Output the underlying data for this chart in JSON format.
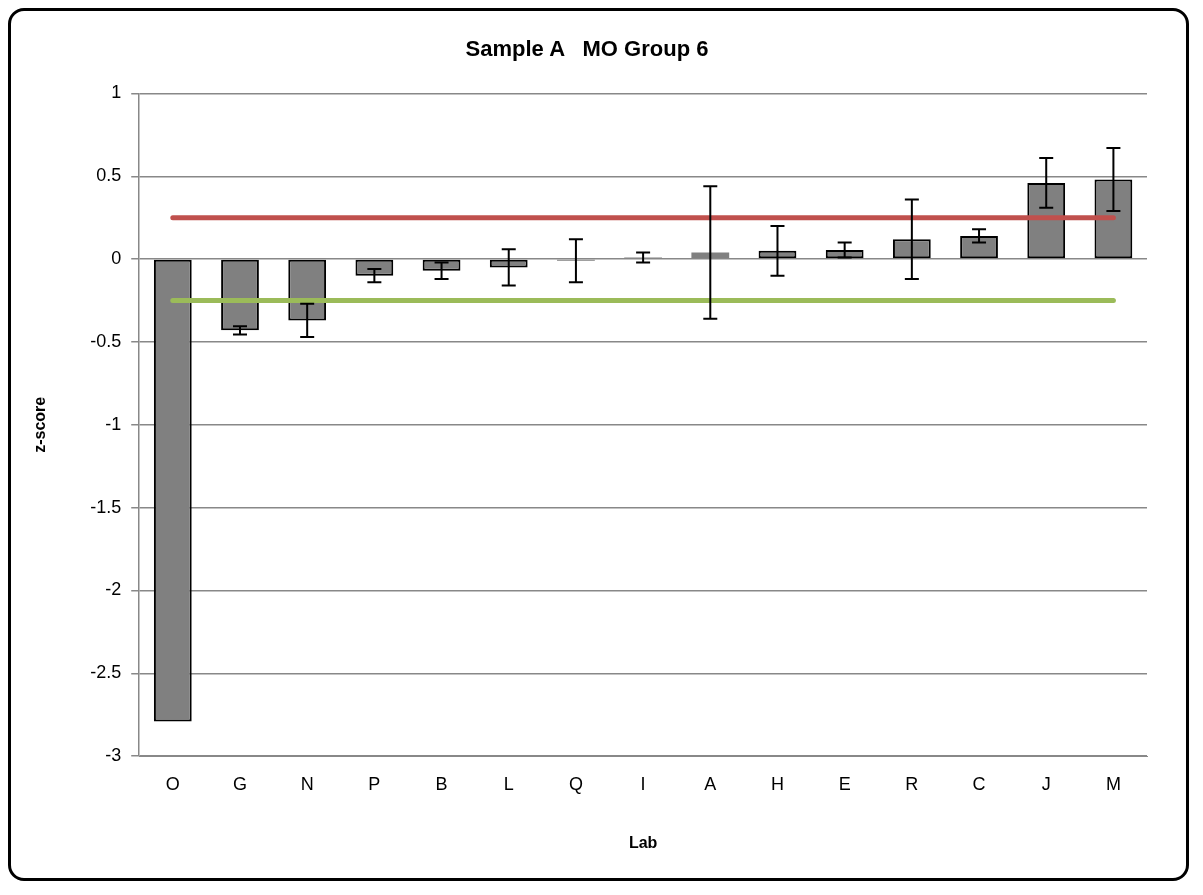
{
  "chart_data": {
    "type": "bar",
    "title": "Sample A   MO Group 6",
    "xlabel": "Lab",
    "ylabel": "z-score",
    "categories": [
      "O",
      "G",
      "N",
      "P",
      "B",
      "L",
      "Q",
      "I",
      "A",
      "H",
      "E",
      "R",
      "C",
      "J",
      "M"
    ],
    "values": [
      -2.79,
      -0.43,
      -0.37,
      -0.1,
      -0.07,
      -0.05,
      -0.01,
      0.01,
      0.04,
      0.05,
      0.055,
      0.12,
      0.14,
      0.46,
      0.48
    ],
    "errors": [
      null,
      0.025,
      0.1,
      0.04,
      0.05,
      0.11,
      0.13,
      0.03,
      0.4,
      0.15,
      0.045,
      0.24,
      0.04,
      0.15,
      0.19
    ],
    "color": "#808080",
    "ylim": [
      -3,
      1
    ],
    "yticks": [
      -3,
      -2.5,
      -2,
      -1.5,
      -1,
      -0.5,
      0,
      0.5,
      1
    ],
    "grid": "y",
    "legend": false,
    "ref_lines": [
      {
        "axis": "y",
        "value": 0.25,
        "color": "#c0504d"
      },
      {
        "axis": "y",
        "value": -0.25,
        "color": "#9bbb59"
      }
    ]
  }
}
